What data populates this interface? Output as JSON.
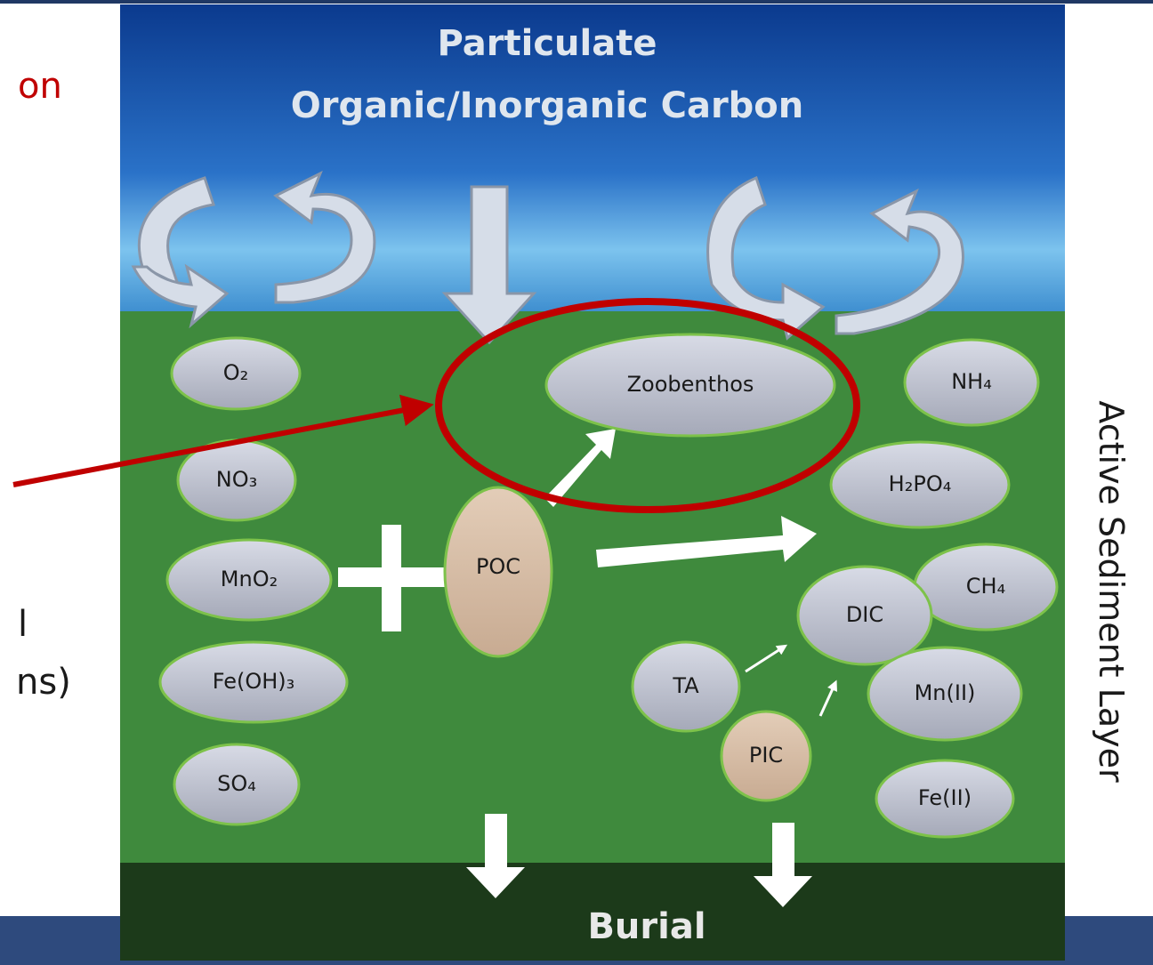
{
  "slide_text": {
    "top_fragment": "on",
    "mid_fragment_1": "l",
    "mid_fragment_2": "ns)"
  },
  "diagram": {
    "title_line_1": "Particulate",
    "title_line_2": "Organic/Inorganic Carbon",
    "bottom_label": "Burial",
    "side_label": "Active Sediment Layer",
    "nodes": [
      {
        "label": "O₂"
      },
      {
        "label": "NO₃"
      },
      {
        "label": "MnO₂"
      },
      {
        "label": "Fe(OH)₃"
      },
      {
        "label": "SO₄"
      },
      {
        "label": "Zoobenthos"
      },
      {
        "label": "POC"
      },
      {
        "label": "NH₄"
      },
      {
        "label": "H₂PO₄"
      },
      {
        "label": "CH₄"
      },
      {
        "label": "DIC"
      },
      {
        "label": "TA"
      },
      {
        "label": "Mn(II)"
      },
      {
        "label": "PIC"
      },
      {
        "label": "Fe(II)"
      }
    ]
  }
}
